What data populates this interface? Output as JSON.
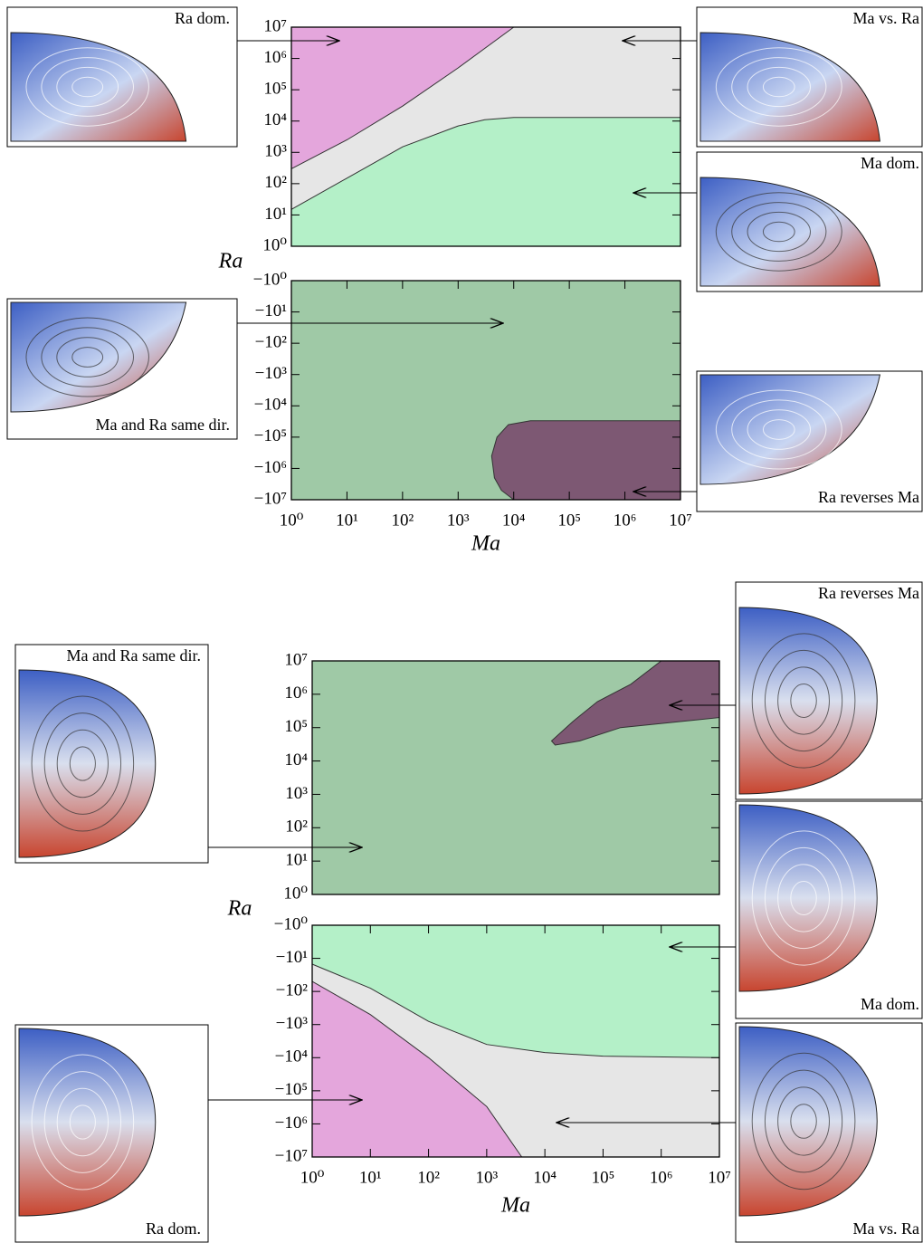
{
  "chart_data": [
    {
      "type": "regime",
      "log": true,
      "background": "#e6e6e6",
      "xlim": [
        1,
        10000000
      ],
      "ylim": [
        1,
        10000000
      ],
      "yticks": [
        {
          "value": 1,
          "label": "10⁰"
        },
        {
          "value": 10,
          "label": "10¹"
        },
        {
          "value": 100,
          "label": "10²"
        },
        {
          "value": 1000,
          "label": "10³"
        },
        {
          "value": 10000,
          "label": "10⁴"
        },
        {
          "value": 100000,
          "label": "10⁵"
        },
        {
          "value": 1000000,
          "label": "10⁶"
        },
        {
          "value": 10000000,
          "label": "10⁷"
        }
      ],
      "ylabel": "Ra",
      "regions": [
        {
          "color": "#e4a6dc",
          "fill": "above",
          "x": [
            1,
            10,
            100,
            1000,
            10000
          ],
          "values": [
            300,
            2500,
            30000,
            500000,
            10000000
          ]
        },
        {
          "color": "#b4f0c8",
          "fill": "below",
          "x": [
            1,
            10,
            100,
            1000,
            3000,
            10000,
            100000,
            10000000
          ],
          "values": [
            15,
            150,
            1500,
            7000,
            11000,
            13000,
            13000,
            13000
          ]
        }
      ]
    },
    {
      "type": "regime",
      "log": true,
      "background": "#9fc9a6",
      "xlim": [
        1,
        10000000
      ],
      "ylim": [
        -10000000,
        -1
      ],
      "xticks": [
        {
          "value": 1,
          "label": "10⁰"
        },
        {
          "value": 10,
          "label": "10¹"
        },
        {
          "value": 100,
          "label": "10²"
        },
        {
          "value": 1000,
          "label": "10³"
        },
        {
          "value": 10000,
          "label": "10⁴"
        },
        {
          "value": 100000,
          "label": "10⁵"
        },
        {
          "value": 1000000,
          "label": "10⁶"
        },
        {
          "value": 10000000,
          "label": "10⁷"
        }
      ],
      "yticks": [
        {
          "value": -1,
          "label": "−10⁰"
        },
        {
          "value": -10,
          "label": "−10¹"
        },
        {
          "value": -100,
          "label": "−10²"
        },
        {
          "value": -1000,
          "label": "−10³"
        },
        {
          "value": -10000,
          "label": "−10⁴"
        },
        {
          "value": -100000,
          "label": "−10⁵"
        },
        {
          "value": -1000000,
          "label": "−10⁶"
        },
        {
          "value": -10000000,
          "label": "−10⁷"
        }
      ],
      "xlabel": "Ma",
      "regions": [
        {
          "color": "#7d5873",
          "fill": "closed",
          "x": [
            10000000,
            20000,
            8000,
            5000,
            4000,
            4500,
            6000,
            10000,
            10000000
          ],
          "values": [
            -30000,
            -30000,
            -40000,
            -100000,
            -400000,
            -2000000,
            -5000000,
            -10000000,
            -10000000
          ]
        }
      ]
    },
    {
      "type": "regime",
      "log": true,
      "background": "#9fc9a6",
      "xlim": [
        1,
        10000000
      ],
      "ylim": [
        1,
        10000000
      ],
      "yticks": [
        {
          "value": 1,
          "label": "10⁰"
        },
        {
          "value": 10,
          "label": "10¹"
        },
        {
          "value": 100,
          "label": "10²"
        },
        {
          "value": 1000,
          "label": "10³"
        },
        {
          "value": 10000,
          "label": "10⁴"
        },
        {
          "value": 100000,
          "label": "10⁵"
        },
        {
          "value": 1000000,
          "label": "10⁶"
        },
        {
          "value": 10000000,
          "label": "10⁷"
        }
      ],
      "ylabel": "Ra",
      "regions": [
        {
          "color": "#7d5873",
          "fill": "closed",
          "x": [
            1000000,
            300000,
            80000,
            30000,
            13000,
            15000,
            40000,
            200000,
            10000000,
            10000000
          ],
          "values": [
            10000000,
            2000000,
            600000,
            150000,
            40000,
            30000,
            40000,
            100000,
            200000,
            10000000
          ]
        }
      ]
    },
    {
      "type": "regime",
      "log": true,
      "background": "#e6e6e6",
      "xlim": [
        1,
        10000000
      ],
      "ylim": [
        -10000000,
        -1
      ],
      "xticks": [
        {
          "value": 1,
          "label": "10⁰"
        },
        {
          "value": 10,
          "label": "10¹"
        },
        {
          "value": 100,
          "label": "10²"
        },
        {
          "value": 1000,
          "label": "10³"
        },
        {
          "value": 10000,
          "label": "10⁴"
        },
        {
          "value": 100000,
          "label": "10⁵"
        },
        {
          "value": 1000000,
          "label": "10⁶"
        },
        {
          "value": 10000000,
          "label": "10⁷"
        }
      ],
      "yticks": [
        {
          "value": -1,
          "label": "−10⁰"
        },
        {
          "value": -10,
          "label": "−10¹"
        },
        {
          "value": -100,
          "label": "−10²"
        },
        {
          "value": -1000,
          "label": "−10³"
        },
        {
          "value": -10000,
          "label": "−10⁴"
        },
        {
          "value": -100000,
          "label": "−10⁵"
        },
        {
          "value": -1000000,
          "label": "−10⁶"
        },
        {
          "value": -10000000,
          "label": "−10⁷"
        }
      ],
      "xlabel": "Ma",
      "regions": [
        {
          "color": "#b4f0c8",
          "fill": "above",
          "x": [
            1,
            10,
            100,
            1000,
            10000,
            100000,
            10000000
          ],
          "values": [
            -15,
            -80,
            -800,
            -4000,
            -7000,
            -9000,
            -10000
          ]
        },
        {
          "color": "#e4a6dc",
          "fill": "below",
          "x": [
            1,
            10,
            100,
            1000,
            4000
          ],
          "values": [
            -50,
            -500,
            -10000,
            -300000,
            -10000000
          ]
        }
      ]
    }
  ],
  "insets": [
    {
      "caption": "Ra dom."
    },
    {
      "caption": "Ma and Ra same dir."
    },
    {
      "caption": "Ma vs. Ra"
    },
    {
      "caption": "Ma dom."
    },
    {
      "caption": "Ra reverses Ma"
    },
    {
      "caption": "Ma and Ra same dir."
    },
    {
      "caption": "Ra dom."
    },
    {
      "caption": "Ra reverses Ma"
    },
    {
      "caption": "Ma dom."
    },
    {
      "caption": "Ma vs. Ra"
    }
  ]
}
